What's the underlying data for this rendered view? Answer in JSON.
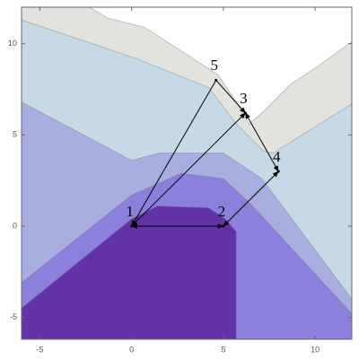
{
  "chart_data": {
    "type": "contour",
    "xlim": [
      -6,
      12
    ],
    "ylim": [
      -6.2,
      12
    ],
    "xticks": [
      -5,
      0,
      5,
      10
    ],
    "yticks": [
      -5,
      0,
      5,
      10
    ],
    "regions": [
      {
        "color": "#e4e2dc",
        "x": [
          -6,
          12,
          12,
          -6
        ],
        "y": [
          12,
          12,
          -6.2,
          -6.2
        ]
      },
      {
        "color": "#c6dae6",
        "x": [
          -6,
          0.2,
          4.2,
          5.7,
          7.2,
          7.7,
          12,
          12,
          -6
        ],
        "y": [
          11.3,
          9.2,
          7.6,
          5.6,
          4.1,
          4,
          6.7,
          -6.2,
          -6.2
        ]
      },
      {
        "color": "#ffffff",
        "x": [
          -2.3,
          -1.3,
          0.7,
          2.7,
          4.7,
          5.7,
          6.4,
          7.2,
          8.7,
          10.2,
          12,
          12
        ],
        "y": [
          12,
          11.4,
          10.9,
          9.6,
          8.3,
          6.8,
          5.6,
          6.3,
          7.8,
          8.8,
          10.1,
          12
        ]
      },
      {
        "color": "#a9aee0",
        "x": [
          -6,
          0,
          1.5,
          5,
          7.1,
          12,
          12,
          -6
        ],
        "y": [
          6.8,
          3.6,
          4,
          4,
          2.6,
          -4,
          -6.2,
          -6.2
        ]
      },
      {
        "color": "#8b80dc",
        "x": [
          -6,
          0,
          2.7,
          5,
          6.5,
          12,
          12,
          -6
        ],
        "y": [
          -3.1,
          1.7,
          2.9,
          2.6,
          1.2,
          -4.8,
          -6.2,
          -6.2
        ]
      },
      {
        "color": "#6233a8",
        "x": [
          -6,
          0,
          1.4,
          4.2,
          5.1,
          5.7,
          5.7,
          -6
        ],
        "y": [
          -4.5,
          0.4,
          1.1,
          1,
          0.4,
          -0.3,
          -6.2,
          -6.2
        ]
      }
    ],
    "nodes": [
      {
        "label": "1",
        "x": 0,
        "y": 0
      },
      {
        "label": "2",
        "x": 5,
        "y": 0
      },
      {
        "label": "3",
        "x": 6.2,
        "y": 6.2
      },
      {
        "label": "4",
        "x": 8,
        "y": 3
      },
      {
        "label": "5",
        "x": 4.6,
        "y": 8
      }
    ],
    "edges": [
      {
        "from": 0,
        "to": 1,
        "arrows": "both"
      },
      {
        "from": 4,
        "to": 0,
        "arrows": "end"
      },
      {
        "from": 0,
        "to": 2,
        "arrows": "both"
      },
      {
        "from": 4,
        "to": 2,
        "arrows": "end"
      },
      {
        "from": 2,
        "to": 3,
        "arrows": "both"
      },
      {
        "from": 3,
        "to": 1,
        "arrows": "both"
      }
    ]
  }
}
